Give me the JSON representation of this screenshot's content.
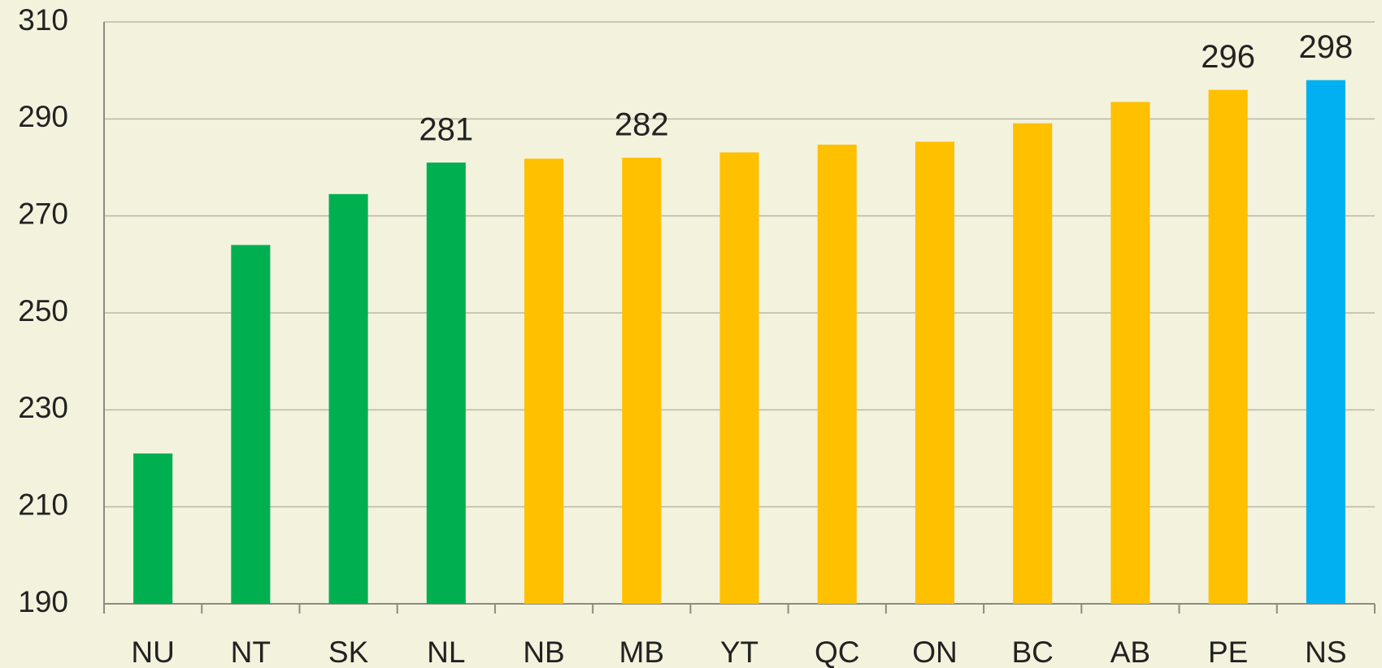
{
  "chart_data": {
    "type": "bar",
    "categories": [
      "NU",
      "NT",
      "SK",
      "NL",
      "NB",
      "MB",
      "YT",
      "QC",
      "ON",
      "BC",
      "AB",
      "PE",
      "NS"
    ],
    "values": [
      221,
      264,
      274.5,
      281,
      281.8,
      282,
      283.1,
      284.7,
      285.3,
      289.1,
      293.5,
      296,
      298
    ],
    "value_labels": [
      null,
      null,
      null,
      "281",
      null,
      "282",
      null,
      null,
      null,
      null,
      null,
      "296",
      "298"
    ],
    "colors": [
      "#00b050",
      "#00b050",
      "#00b050",
      "#00b050",
      "#ffc000",
      "#ffc000",
      "#ffc000",
      "#ffc000",
      "#ffc000",
      "#ffc000",
      "#ffc000",
      "#ffc000",
      "#00b0f0"
    ],
    "ylim": [
      190,
      310
    ],
    "yticks": [
      190,
      210,
      230,
      250,
      270,
      290,
      310
    ],
    "grid": true
  }
}
